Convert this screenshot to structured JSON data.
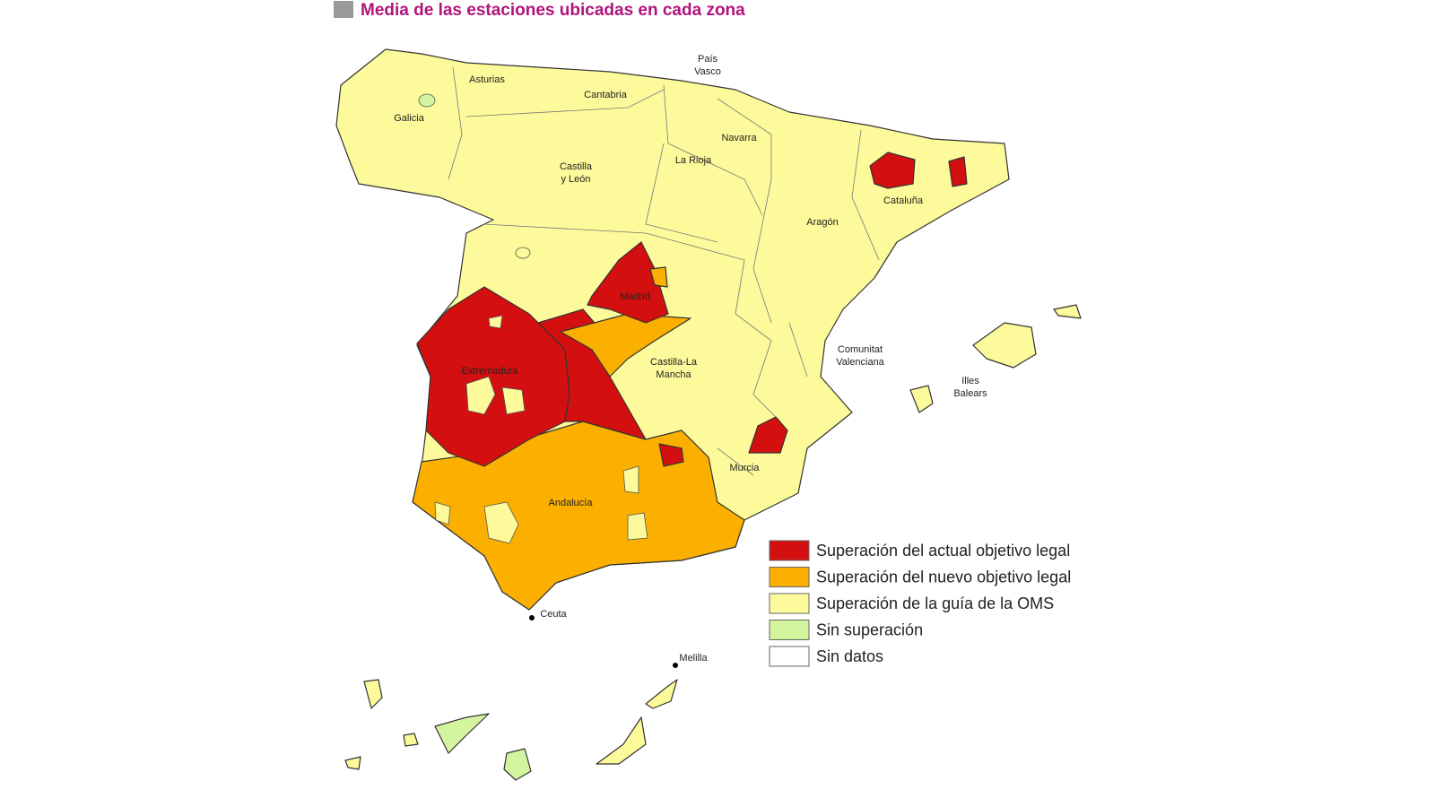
{
  "title": "Media de las estaciones ubicadas en cada zona",
  "regions": [
    {
      "lines": [
        "Galicia"
      ]
    },
    {
      "lines": [
        "Asturias"
      ]
    },
    {
      "lines": [
        "Cantabria"
      ]
    },
    {
      "lines": [
        "País",
        "Vasco"
      ]
    },
    {
      "lines": [
        "Navarra"
      ]
    },
    {
      "lines": [
        "La Rioja"
      ]
    },
    {
      "lines": [
        "Castilla",
        "y León"
      ]
    },
    {
      "lines": [
        "Aragón"
      ]
    },
    {
      "lines": [
        "Cataluña"
      ]
    },
    {
      "lines": [
        "Madrid"
      ]
    },
    {
      "lines": [
        "Extremadura"
      ]
    },
    {
      "lines": [
        "Castilla-La",
        "Mancha"
      ]
    },
    {
      "lines": [
        "Comunitat",
        "Valenciana"
      ]
    },
    {
      "lines": [
        "Illes",
        "Balears"
      ]
    },
    {
      "lines": [
        "Murcia"
      ]
    },
    {
      "lines": [
        "Andalucía"
      ]
    },
    {
      "lines": [
        "Ceuta"
      ]
    },
    {
      "lines": [
        "Melilla"
      ]
    }
  ],
  "legend": [
    {
      "label": "Superación del actual objetivo legal",
      "color": "#d40f0f"
    },
    {
      "label": "Superación del nuevo objetivo legal",
      "color": "#fbb000"
    },
    {
      "label": "Superación de la guía de la OMS",
      "color": "#fdfa9b"
    },
    {
      "label": "Sin superación",
      "color": "#d4f5a0"
    },
    {
      "label": "Sin datos",
      "color": "#ffffff"
    }
  ]
}
